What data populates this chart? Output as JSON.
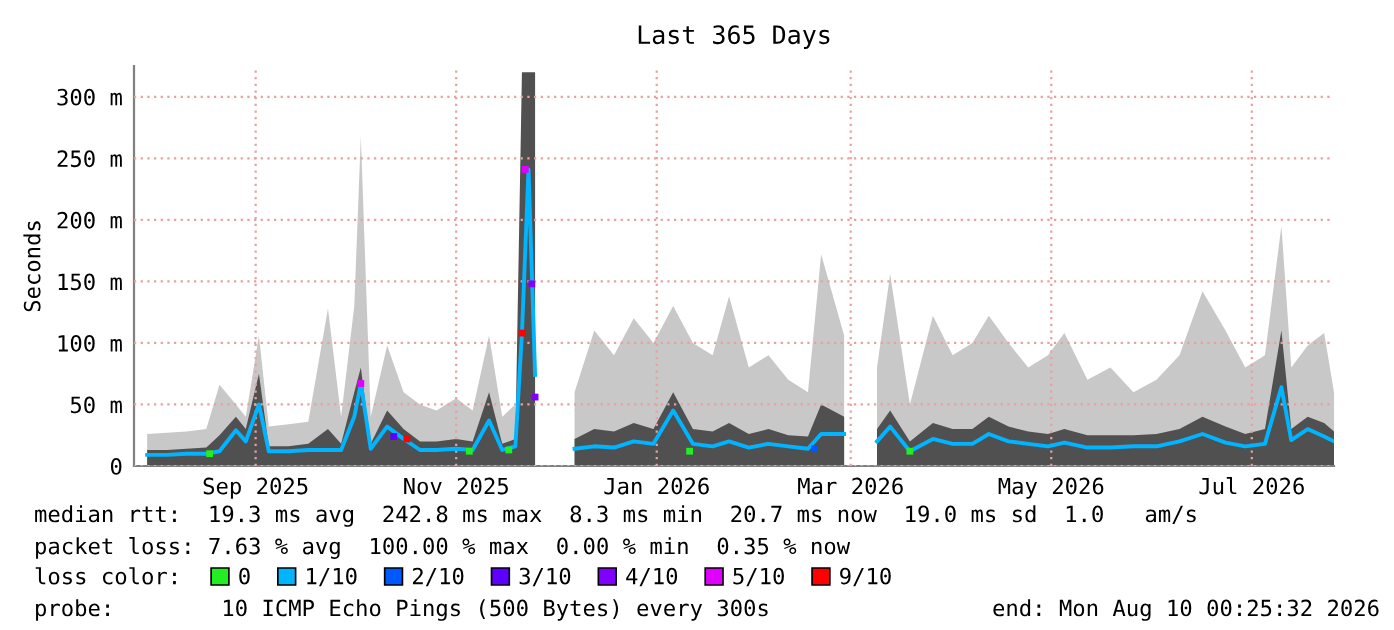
{
  "chart_data": {
    "type": "line",
    "title": "Last 365 Days",
    "ylabel": "Seconds",
    "legend_title": "loss color:",
    "x": [
      "2025-08-14",
      "2025-08-20",
      "2025-08-26",
      "2025-09-01",
      "2025-09-05",
      "2025-09-10",
      "2025-09-13",
      "2025-09-17",
      "2025-09-20",
      "2025-09-26",
      "2025-10-02",
      "2025-10-08",
      "2025-10-12",
      "2025-10-16",
      "2025-10-18",
      "2025-10-21",
      "2025-10-26",
      "2025-10-31",
      "2025-11-05",
      "2025-11-10",
      "2025-11-16",
      "2025-11-21",
      "2025-11-26",
      "2025-11-30",
      "2025-12-04",
      "2025-12-06",
      "2025-12-08",
      "2025-12-10",
      "2025-12-16",
      "2025-12-22",
      "2025-12-28",
      "2026-01-03",
      "2026-01-09",
      "2026-01-15",
      "2026-01-21",
      "2026-01-27",
      "2026-02-02",
      "2026-02-07",
      "2026-02-13",
      "2026-02-19",
      "2026-02-25",
      "2026-03-03",
      "2026-03-07",
      "2026-03-14",
      "2026-03-20",
      "2026-03-24",
      "2026-03-28",
      "2026-04-03",
      "2026-04-10",
      "2026-04-16",
      "2026-04-22",
      "2026-04-27",
      "2026-05-03",
      "2026-05-09",
      "2026-05-15",
      "2026-05-20",
      "2026-05-27",
      "2026-06-03",
      "2026-06-10",
      "2026-06-17",
      "2026-06-24",
      "2026-07-01",
      "2026-07-08",
      "2026-07-14",
      "2026-07-20",
      "2026-07-25",
      "2026-07-28",
      "2026-08-02",
      "2026-08-07",
      "2026-08-10"
    ],
    "series": [
      {
        "type": "area",
        "color": "#c8c8c8",
        "values": [
          26,
          27,
          28,
          30,
          66,
          50,
          40,
          106,
          32,
          34,
          36,
          128,
          40,
          130,
          268,
          40,
          98,
          60,
          50,
          45,
          55,
          45,
          106,
          40,
          50,
          null,
          null,
          null,
          null,
          60,
          110,
          90,
          120,
          100,
          130,
          100,
          90,
          138,
          80,
          90,
          70,
          60,
          172,
          106,
          null,
          80,
          156,
          50,
          122,
          90,
          100,
          122,
          100,
          80,
          90,
          108,
          70,
          80,
          60,
          70,
          90,
          142,
          110,
          80,
          90,
          195,
          80,
          98,
          108,
          60
        ]
      },
      {
        "type": "area",
        "color": "#505050",
        "values": [
          13,
          13,
          14,
          15,
          25,
          40,
          30,
          75,
          16,
          16,
          18,
          30,
          18,
          60,
          80,
          18,
          45,
          30,
          20,
          20,
          22,
          20,
          60,
          18,
          22,
          320,
          320,
          320,
          null,
          22,
          30,
          28,
          35,
          30,
          60,
          30,
          28,
          35,
          26,
          30,
          25,
          24,
          50,
          40,
          null,
          30,
          45,
          20,
          35,
          30,
          30,
          40,
          32,
          28,
          26,
          30,
          25,
          25,
          25,
          26,
          30,
          40,
          32,
          26,
          30,
          110,
          30,
          40,
          35,
          28
        ]
      },
      {
        "type": "scatter",
        "name": "0",
        "color": "#22ee22",
        "x": [
          "2025-09-02",
          "2025-11-20",
          "2025-12-02",
          "2026-01-26",
          "2026-04-03"
        ],
        "values": [
          10,
          12,
          13,
          12,
          12
        ]
      },
      {
        "name": "1/10",
        "color": "#00b4ff",
        "values": [
          9,
          9,
          10,
          10,
          12,
          29,
          20,
          50,
          12,
          12,
          13,
          13,
          13,
          40,
          67,
          14,
          32,
          22,
          13,
          13,
          14,
          13,
          37,
          13,
          16,
          108,
          241,
          74,
          null,
          14,
          16,
          15,
          20,
          18,
          45,
          18,
          16,
          20,
          15,
          18,
          16,
          14,
          26,
          26,
          null,
          20,
          32,
          12,
          22,
          18,
          18,
          26,
          20,
          18,
          16,
          19,
          15,
          15,
          16,
          16,
          20,
          26,
          19,
          16,
          18,
          64,
          21,
          30,
          24,
          20
        ]
      },
      {
        "type": "scatter",
        "name": "2/10",
        "color": "#0059ff",
        "x": [
          "2026-03-05"
        ],
        "values": [
          14
        ]
      },
      {
        "type": "scatter",
        "name": "3/10",
        "color": "#5e00ff",
        "x": [
          "2025-10-28"
        ],
        "values": [
          24
        ]
      },
      {
        "type": "scatter",
        "name": "4/10",
        "color": "#8000ff",
        "x": [
          "2025-12-09",
          "2025-12-10"
        ],
        "values": [
          148,
          56
        ]
      },
      {
        "type": "scatter",
        "name": "5/10",
        "color": "#e000ff",
        "x": [
          "2025-10-18",
          "2025-12-07"
        ],
        "values": [
          67,
          241
        ]
      },
      {
        "type": "scatter",
        "name": "9/10",
        "color": "#ff0000",
        "x": [
          "2025-11-01",
          "2025-12-06"
        ],
        "values": [
          22,
          108
        ]
      }
    ],
    "xlim": [
      "2025-08-10",
      "2026-08-10"
    ],
    "xticks": [
      {
        "value": "2025-09-16",
        "label": "Sep 2025"
      },
      {
        "value": "2025-11-16",
        "label": "Nov 2025"
      },
      {
        "value": "2026-01-16",
        "label": "Jan 2026"
      },
      {
        "value": "2026-03-16",
        "label": "Mar 2026"
      },
      {
        "value": "2026-05-16",
        "label": "May 2026"
      },
      {
        "value": "2026-07-16",
        "label": "Jul 2026"
      }
    ],
    "ylim": [
      0,
      325
    ],
    "yticks": [
      0,
      {
        "value": 50,
        "label": "50 m"
      },
      {
        "value": 100,
        "label": "100 m"
      },
      {
        "value": 150,
        "label": "150 m"
      },
      {
        "value": 200,
        "label": "200 m"
      },
      {
        "value": 250,
        "label": "250 m"
      },
      {
        "value": 300,
        "label": "300 m"
      }
    ],
    "grid": true,
    "legend": "bottom",
    "annotations": [
      "median rtt:  19.3 ms avg  242.8 ms max  8.3 ms min  20.7 ms now  19.0 ms sd  1.0   am/s",
      "packet loss: 7.63 % avg  100.00 % max  0.00 % min  0.35 % now",
      "probe:        10 ICMP Echo Pings (500 Bytes) every 300s",
      "end: Mon Aug 10 00:25:32 2026"
    ]
  }
}
